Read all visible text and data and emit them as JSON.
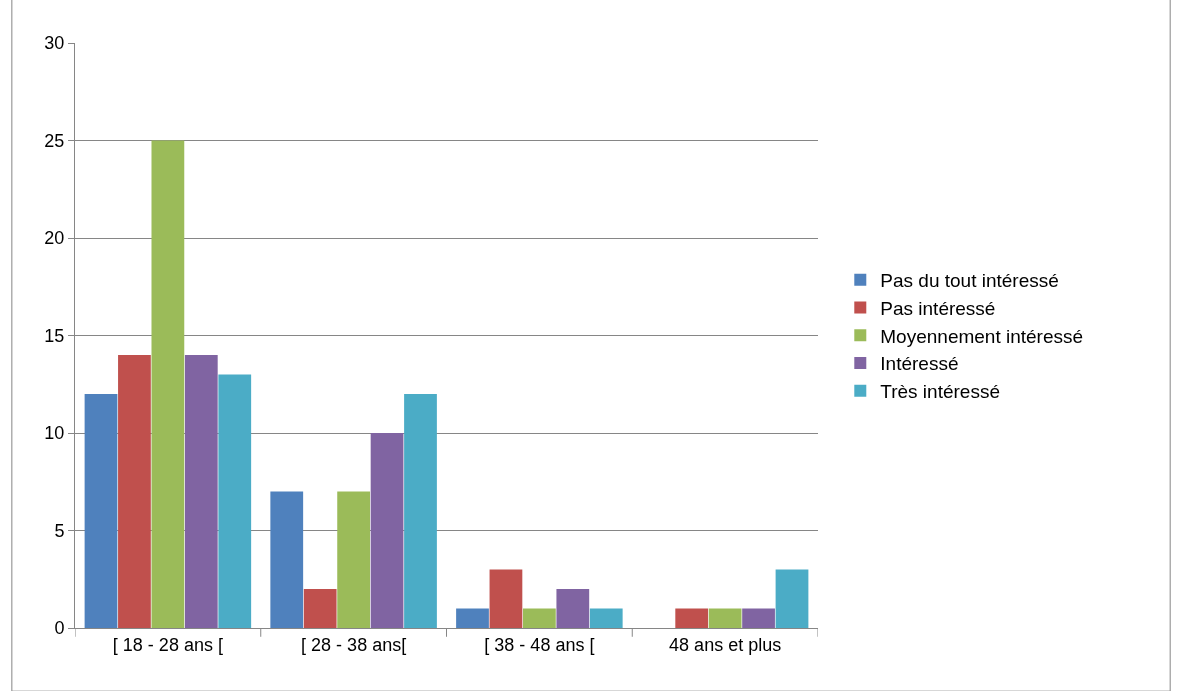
{
  "chart_data": {
    "type": "bar",
    "categories": [
      "[ 18 - 28 ans [",
      "[ 28 - 38 ans[",
      "[ 38 - 48 ans [",
      "48 ans et plus"
    ],
    "series": [
      {
        "name": "Pas du tout intéressé",
        "color": "#4f81bd",
        "values": [
          12,
          7,
          1,
          0
        ]
      },
      {
        "name": "Pas intéressé",
        "color": "#c0504d",
        "values": [
          14,
          2,
          3,
          1
        ]
      },
      {
        "name": "Moyennement intéressé",
        "color": "#9bbb59",
        "values": [
          25,
          7,
          1,
          1
        ]
      },
      {
        "name": "Intéressé",
        "color": "#8064a2",
        "values": [
          14,
          10,
          2,
          1
        ]
      },
      {
        "name": "Très intéressé",
        "color": "#4bacc6",
        "values": [
          13,
          12,
          1,
          3
        ]
      }
    ],
    "ylim": [
      0,
      30
    ],
    "yticks": [
      0,
      5,
      10,
      15,
      20,
      25,
      30
    ],
    "grid": "y",
    "legend": "right"
  }
}
